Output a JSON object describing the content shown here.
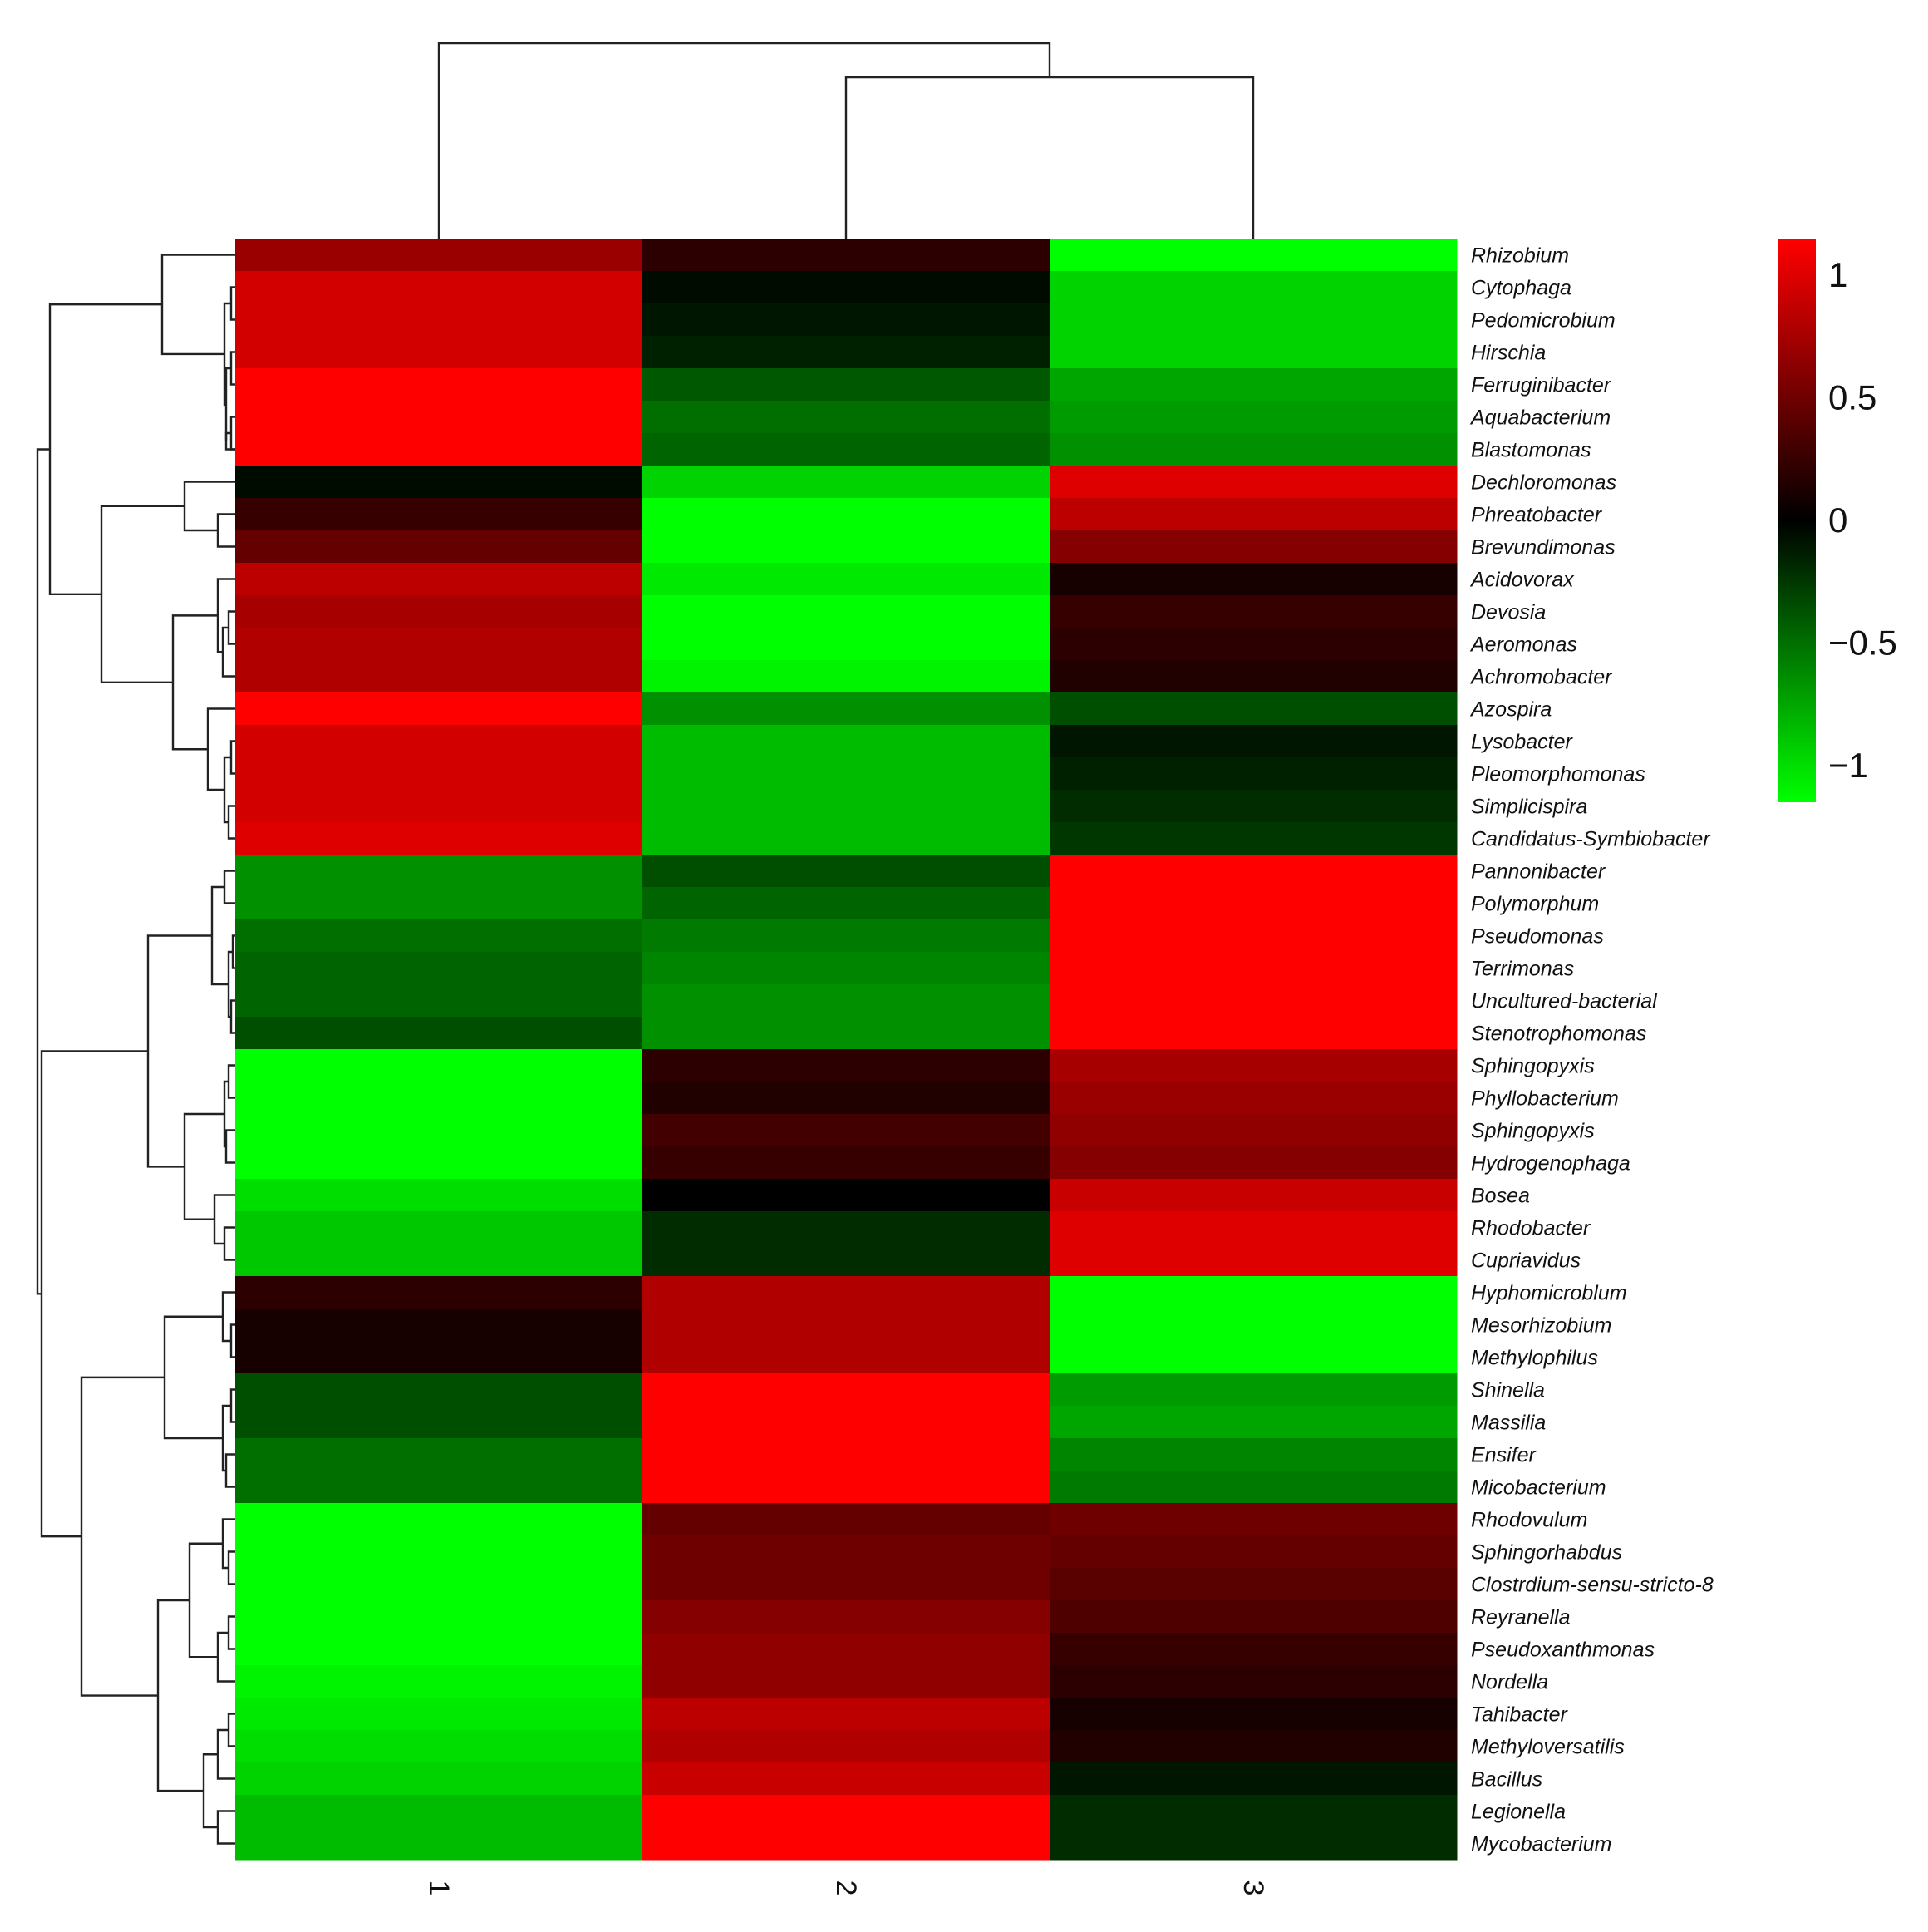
{
  "chart_data": {
    "type": "heatmap",
    "title": "",
    "xlabel": "",
    "ylabel": "",
    "columns": [
      "1",
      "2",
      "3"
    ],
    "rows": [
      "Rhizobium",
      "Cytophaga",
      "Pedomicrobium",
      "Hirschia",
      "Ferruginibacter",
      "Aquabacterium",
      "Blastomonas",
      "Dechloromonas",
      "Phreatobacter",
      "Brevundimonas",
      "Acidovorax",
      "Devosia",
      "Aeromonas",
      "Achromobacter",
      "Azospira",
      "Lysobacter",
      "Pleomorphomonas",
      "Simplicispira",
      "Candidatus-Symbiobacter",
      "Pannonibacter",
      "Polymorphum",
      "Pseudomonas",
      "Terrimonas",
      "Uncultured-bacterial",
      "Stenotrophomonas",
      "Sphingopyxis",
      "Phyllobacterium",
      "Sphingopyxis",
      "Hydrogenophaga",
      "Bosea",
      "Rhodobacter",
      "Cupriavidus",
      "Hyphomicroblum",
      "Mesorhizobium",
      "Methylophilus",
      "Shinella",
      "Massilia",
      "Ensifer",
      "Micobacterium",
      "Rhodovulum",
      "Sphingorhabdus",
      "Clostrdium-sensu-stricto-8",
      "Reyranella",
      "Pseudoxanthmonas",
      "Nordella",
      "Tahibacter",
      "Methyloversatilis",
      "Bacillus",
      "Legionella",
      "Mycobacterium"
    ],
    "values": [
      [
        0.7,
        0.2,
        -1.15
      ],
      [
        0.95,
        -0.05,
        -0.95
      ],
      [
        0.95,
        -0.1,
        -0.95
      ],
      [
        0.95,
        -0.15,
        -0.95
      ],
      [
        1.15,
        -0.4,
        -0.75
      ],
      [
        1.15,
        -0.5,
        -0.7
      ],
      [
        1.15,
        -0.45,
        -0.65
      ],
      [
        -0.05,
        -0.95,
        1.0
      ],
      [
        0.25,
        -1.15,
        0.85
      ],
      [
        0.45,
        -1.15,
        0.6
      ],
      [
        0.85,
        -1.05,
        0.1
      ],
      [
        0.75,
        -1.15,
        0.25
      ],
      [
        0.8,
        -1.15,
        0.2
      ],
      [
        0.8,
        -1.1,
        0.15
      ],
      [
        1.15,
        -0.65,
        -0.35
      ],
      [
        0.95,
        -0.85,
        -0.1
      ],
      [
        0.95,
        -0.85,
        -0.15
      ],
      [
        0.95,
        -0.85,
        -0.2
      ],
      [
        1.0,
        -0.85,
        -0.25
      ],
      [
        -0.65,
        -0.35,
        1.15
      ],
      [
        -0.65,
        -0.45,
        1.15
      ],
      [
        -0.5,
        -0.55,
        1.15
      ],
      [
        -0.45,
        -0.6,
        1.15
      ],
      [
        -0.45,
        -0.65,
        1.15
      ],
      [
        -0.35,
        -0.65,
        1.15
      ],
      [
        -1.15,
        0.2,
        0.75
      ],
      [
        -1.15,
        0.15,
        0.7
      ],
      [
        -1.15,
        0.3,
        0.65
      ],
      [
        -1.15,
        0.25,
        0.6
      ],
      [
        -1.0,
        0.0,
        0.9
      ],
      [
        -0.9,
        -0.2,
        1.0
      ],
      [
        -0.9,
        -0.2,
        1.0
      ],
      [
        0.2,
        0.8,
        -1.15
      ],
      [
        0.1,
        0.8,
        -1.15
      ],
      [
        0.1,
        0.8,
        -1.15
      ],
      [
        -0.35,
        1.15,
        -0.7
      ],
      [
        -0.35,
        1.15,
        -0.75
      ],
      [
        -0.5,
        1.15,
        -0.6
      ],
      [
        -0.5,
        1.15,
        -0.55
      ],
      [
        -1.15,
        0.45,
        0.5
      ],
      [
        -1.15,
        0.5,
        0.45
      ],
      [
        -1.15,
        0.5,
        0.4
      ],
      [
        -1.15,
        0.6,
        0.35
      ],
      [
        -1.15,
        0.65,
        0.25
      ],
      [
        -1.1,
        0.65,
        0.2
      ],
      [
        -1.05,
        0.85,
        0.1
      ],
      [
        -1.0,
        0.8,
        0.15
      ],
      [
        -0.95,
        0.9,
        -0.1
      ],
      [
        -0.85,
        1.15,
        -0.2
      ],
      [
        -0.85,
        1.15,
        -0.2
      ]
    ],
    "color_scale": {
      "min": -1.15,
      "max": 1.15,
      "low_color": "#00ff00",
      "mid_color": "#000000",
      "high_color": "#ff0000",
      "ticks": [
        1,
        0.5,
        0,
        -0.5,
        -1
      ],
      "tick_labels": [
        "1",
        "0.5",
        "0",
        "−0.5",
        "−1"
      ]
    },
    "column_dendrogram": "((2,3),1)",
    "row_dendrogram": "(((Rhizobium-Blastomonas),((Dechloromonas-Brevundimonas),((Acidovorax-Achromobacter),(Azospira-Candidatus-Symbiobacter)))),(((Pannonibacter-Stenotrophomonas),(Sphingopyxis-Cupriavidus)),((Hyphomicroblum-Micobacterium),(Rhodovulum-Mycobacterium))))",
    "legend_position": "right",
    "grid": false
  }
}
